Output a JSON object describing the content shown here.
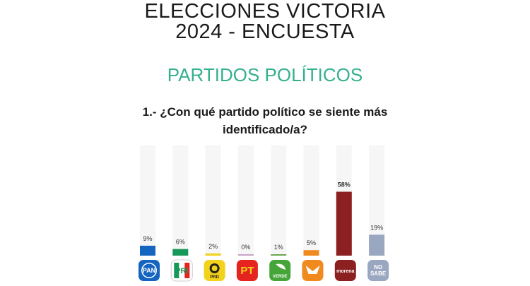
{
  "header": {
    "title_line1": "ELECCIONES VICTORIA",
    "title_line2": "2024 - ENCUESTA",
    "subtitle": "PARTIDOS POLÍTICOS",
    "question_line1": "1.- ¿Con qué partido político se siente más",
    "question_line2": "identificado/a?"
  },
  "chart_data": {
    "type": "bar",
    "categories": [
      "PAN",
      "PRI",
      "PRD",
      "PT",
      "VERDE",
      "MC",
      "morena",
      "NO SABE"
    ],
    "values": [
      9,
      6,
      2,
      0,
      1,
      5,
      58,
      19
    ],
    "value_labels": [
      "9%",
      "6%",
      "2%",
      "0%",
      "1%",
      "5%",
      "58%",
      "19%"
    ],
    "ylim": [
      0,
      100
    ],
    "grid": false,
    "legend": "none",
    "colors": [
      "#1565c0",
      "#159858",
      "#f2d21a",
      "#c9a3c9",
      "#6aa84f",
      "#f08a1e",
      "#8c1f1f",
      "#9aa7c0"
    ],
    "track_color": "#f6f6f6",
    "logos": [
      {
        "icon": "pan-logo-icon",
        "text": "PAN",
        "bg": "#1565c0",
        "fg": "#ffffff"
      },
      {
        "icon": "pri-logo-icon",
        "text": "PRI",
        "bg": "#ffffff",
        "fg": "#159858"
      },
      {
        "icon": "prd-logo-icon",
        "text": "PRD",
        "bg": "#f2d21a",
        "fg": "#222222"
      },
      {
        "icon": "pt-logo-icon",
        "text": "PT",
        "bg": "#e52420",
        "fg": "#f2d21a"
      },
      {
        "icon": "verde-logo-icon",
        "text": "VERDE",
        "bg": "#46a538",
        "fg": "#ffffff"
      },
      {
        "icon": "mc-logo-icon",
        "text": "",
        "bg": "#f08a1e",
        "fg": "#ffffff"
      },
      {
        "icon": "morena-logo-icon",
        "text": "morena",
        "bg": "#8c1f1f",
        "fg": "#ffffff"
      },
      {
        "icon": "no-sabe-icon",
        "text": "NO SABE",
        "bg": "#9aa7c0",
        "fg": "#ffffff"
      }
    ]
  }
}
